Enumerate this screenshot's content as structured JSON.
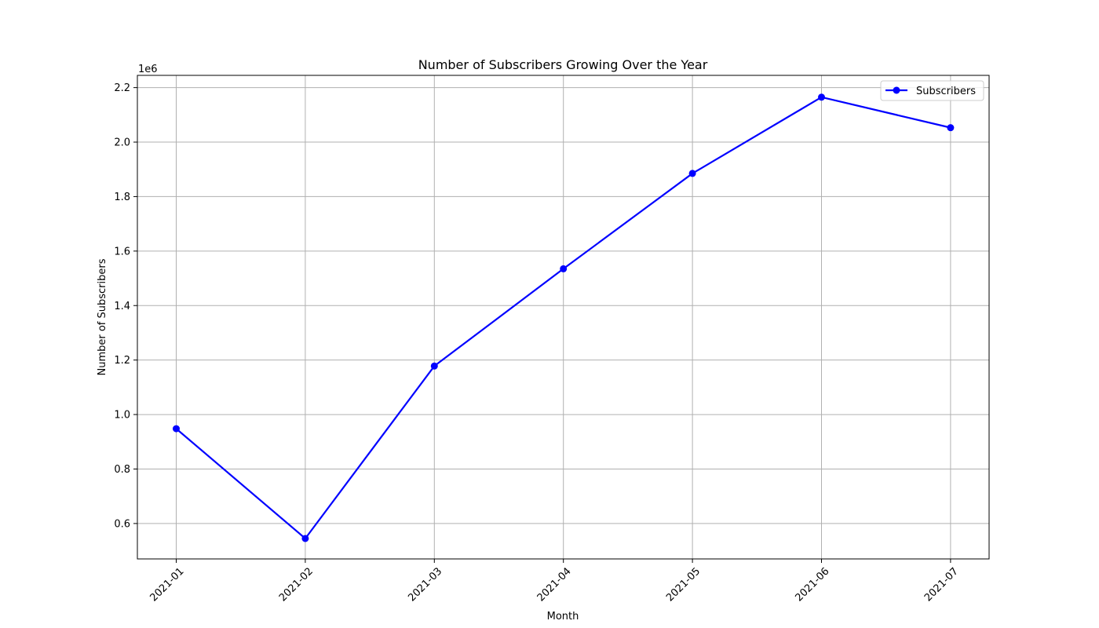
{
  "chart_data": {
    "type": "line",
    "title": "Number of Subscribers Growing Over the Year",
    "xlabel": "Month",
    "ylabel": "Number of Subscribers",
    "y_offset_label": "1e6",
    "categories": [
      "2021-01",
      "2021-02",
      "2021-03",
      "2021-04",
      "2021-05",
      "2021-06",
      "2021-07"
    ],
    "series": [
      {
        "name": "Subscribers",
        "values": [
          948000,
          545000,
          1178000,
          1535000,
          1885000,
          2165000,
          2053000
        ],
        "color": "#0000ff",
        "marker": "circle"
      }
    ],
    "yticks": [
      0.6,
      0.8,
      1.0,
      1.2,
      1.4,
      1.6,
      1.8,
      2.0,
      2.2
    ],
    "ytick_labels": [
      "0.6",
      "0.8",
      "1.0",
      "1.2",
      "1.4",
      "1.6",
      "1.8",
      "2.0",
      "2.2"
    ],
    "ylim": [
      470000,
      2245000
    ],
    "grid": true,
    "legend_position": "top-right",
    "grid_color": "#b0b0b0"
  }
}
